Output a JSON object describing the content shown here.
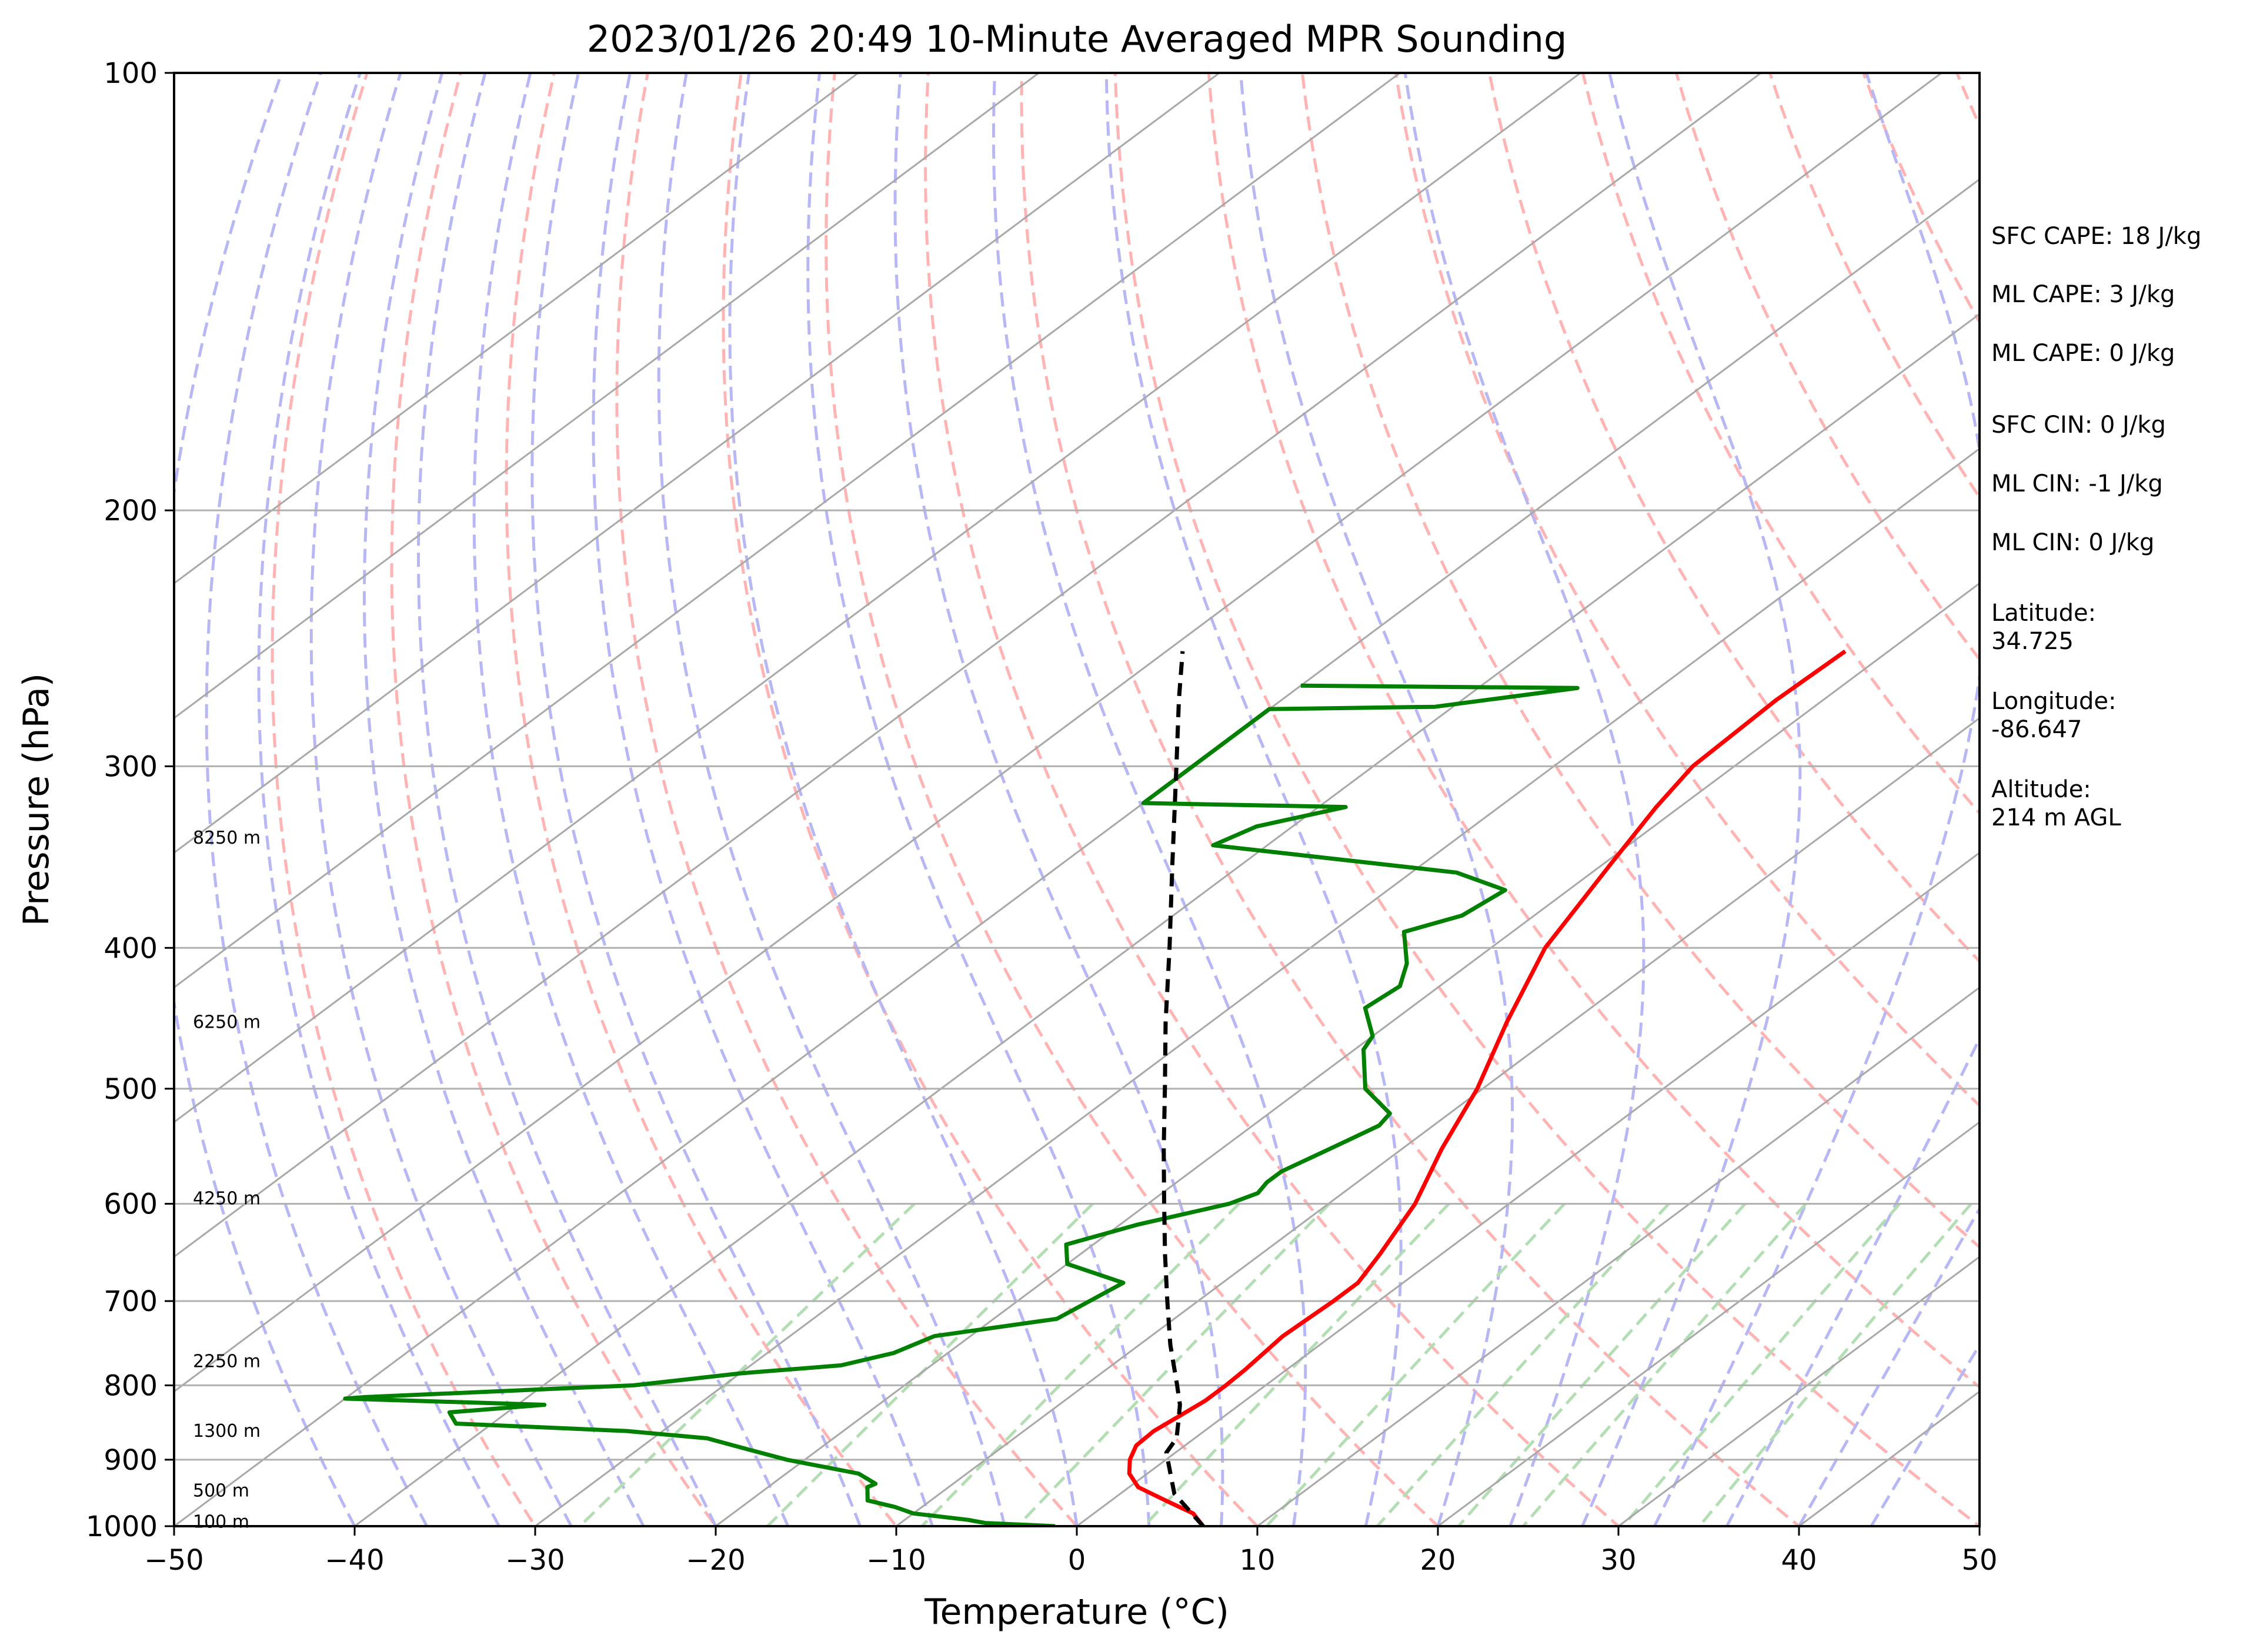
{
  "title": "2023/01/26 20:49 10-Minute Averaged MPR Sounding",
  "chart_data": {
    "type": "skew-t",
    "title": "2023/01/26 20:49 10-Minute Averaged MPR Sounding",
    "xlabel": "Temperature (°C)",
    "ylabel": "Pressure (hPa)",
    "xlim": [
      -50,
      50
    ],
    "ylim": [
      1000,
      100
    ],
    "y_scale": "log",
    "x_ticks": [
      -50,
      -40,
      -30,
      -20,
      -10,
      0,
      10,
      20,
      30,
      40,
      50
    ],
    "x_tick_labels": [
      "−50",
      "−40",
      "−30",
      "−20",
      "−10",
      "0",
      "10",
      "20",
      "30",
      "40",
      "50"
    ],
    "y_ticks": [
      1000,
      900,
      800,
      700,
      600,
      500,
      400,
      300,
      200,
      100
    ],
    "y_tick_labels": [
      "1000",
      "900",
      "800",
      "700",
      "600",
      "500",
      "400",
      "300",
      "200",
      "100"
    ],
    "grid": true,
    "series": [
      {
        "color": "#ff0000",
        "points": [
          [
            1000,
            7.0
          ],
          [
            980,
            5.5
          ],
          [
            960,
            3.0
          ],
          [
            940,
            0.5
          ],
          [
            920,
            -1.0
          ],
          [
            900,
            -2.0
          ],
          [
            880,
            -2.7
          ],
          [
            860,
            -2.8
          ],
          [
            840,
            -2.5
          ],
          [
            820,
            -2.2
          ],
          [
            800,
            -2.2
          ],
          [
            780,
            -2.3
          ],
          [
            760,
            -2.5
          ],
          [
            740,
            -2.7
          ],
          [
            720,
            -2.6
          ],
          [
            700,
            -2.5
          ],
          [
            680,
            -2.5
          ],
          [
            650,
            -3.4
          ],
          [
            600,
            -5.2
          ],
          [
            550,
            -7.8
          ],
          [
            500,
            -10.3
          ],
          [
            450,
            -13.6
          ],
          [
            400,
            -17.0
          ],
          [
            350,
            -19.6
          ],
          [
            320,
            -21.3
          ],
          [
            300,
            -22.3
          ],
          [
            270,
            -22.6
          ],
          [
            250,
            -22.4
          ]
        ]
      },
      {
        "color": "#008000",
        "points": [
          [
            1000,
            -1.2
          ],
          [
            995,
            -5.3
          ],
          [
            990,
            -6.5
          ],
          [
            980,
            -10.0
          ],
          [
            970,
            -11.5
          ],
          [
            960,
            -13.5
          ],
          [
            940,
            -14.5
          ],
          [
            935,
            -14.3
          ],
          [
            920,
            -16.0
          ],
          [
            900,
            -21.0
          ],
          [
            880,
            -25.0
          ],
          [
            870,
            -27.0
          ],
          [
            860,
            -32.0
          ],
          [
            850,
            -42.0
          ],
          [
            835,
            -43.2
          ],
          [
            825,
            -38.5
          ],
          [
            817,
            -50.0
          ],
          [
            815,
            -49.0
          ],
          [
            800,
            -35.0
          ],
          [
            785,
            -30.0
          ],
          [
            775,
            -25.0
          ],
          [
            760,
            -23.0
          ],
          [
            740,
            -22.0
          ],
          [
            720,
            -16.5
          ],
          [
            700,
            -16.0
          ],
          [
            680,
            -15.5
          ],
          [
            660,
            -20.0
          ],
          [
            640,
            -21.5
          ],
          [
            620,
            -19.0
          ],
          [
            600,
            -15.5
          ],
          [
            590,
            -14.7
          ],
          [
            580,
            -15.0
          ],
          [
            570,
            -15.0
          ],
          [
            550,
            -14.0
          ],
          [
            530,
            -13.0
          ],
          [
            520,
            -13.3
          ],
          [
            500,
            -16.5
          ],
          [
            470,
            -19.5
          ],
          [
            460,
            -20.0
          ],
          [
            440,
            -22.5
          ],
          [
            425,
            -22.2
          ],
          [
            410,
            -23.5
          ],
          [
            390,
            -26.0
          ],
          [
            380,
            -24.0
          ],
          [
            365,
            -23.5
          ],
          [
            355,
            -27.5
          ],
          [
            340,
            -43.0
          ],
          [
            330,
            -42.0
          ],
          [
            320,
            -38.5
          ],
          [
            318,
            -50.0
          ],
          [
            274,
            -50.0
          ],
          [
            273,
            -41.0
          ],
          [
            265,
            -34.5
          ],
          [
            264,
            -50.0
          ]
        ]
      },
      {
        "color": "#000000",
        "style": "dashed",
        "points": [
          [
            1000,
            7.0
          ],
          [
            950,
            3.0
          ],
          [
            890,
            -0.5
          ],
          [
            870,
            -1.0
          ],
          [
            850,
            -2.0
          ],
          [
            825,
            -3.3
          ],
          [
            800,
            -4.9
          ],
          [
            750,
            -8.3
          ],
          [
            700,
            -11.7
          ],
          [
            650,
            -15.3
          ],
          [
            600,
            -19.1
          ],
          [
            550,
            -23.2
          ],
          [
            500,
            -27.6
          ],
          [
            450,
            -32.5
          ],
          [
            400,
            -37.8
          ],
          [
            350,
            -43.9
          ],
          [
            300,
            -50.9
          ],
          [
            270,
            -55.7
          ],
          [
            250,
            -59.1
          ]
        ]
      }
    ],
    "height_labels": [
      {
        "text": "100 m",
        "pressure": 993
      },
      {
        "text": "500 m",
        "pressure": 945
      },
      {
        "text": "1300 m",
        "pressure": 860
      },
      {
        "text": "2250 m",
        "pressure": 770
      },
      {
        "text": "4250 m",
        "pressure": 595
      },
      {
        "text": "6250 m",
        "pressure": 450
      },
      {
        "text": "8250 m",
        "pressure": 336
      }
    ],
    "annotations": [
      "SFC CAPE: 18 J/kg",
      "ML CAPE: 3 J/kg",
      "ML CAPE: 0 J/kg",
      "SFC CIN: 0 J/kg",
      "ML CIN: -1 J/kg",
      "ML CIN: 0 J/kg",
      "Latitude:",
      "34.725",
      "Longitude:",
      "-86.647",
      "Altitude:",
      "214 m AGL"
    ],
    "colors": {
      "temperature": "#ff0000",
      "dewpoint": "#008000",
      "parcel": "#000000",
      "dry_adiabats": "#ffb3b3",
      "moist_adiabats": "#b7b7f5",
      "mixing_ratio": "#b3deb3",
      "isotherms": "#a8a8a8",
      "grid": "#b0b0b0"
    }
  }
}
